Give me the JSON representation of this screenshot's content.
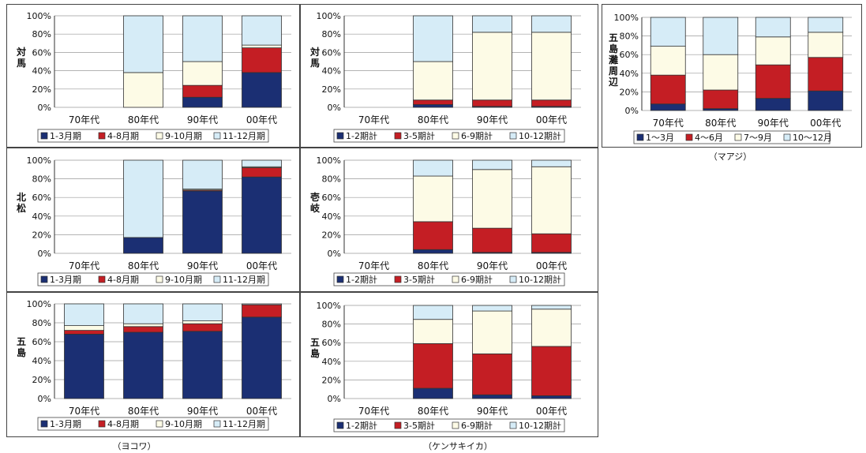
{
  "colors": {
    "c1": "#1b2f73",
    "c2": "#c41e24",
    "c3": "#fdfbe6",
    "c4": "#d6ecf7"
  },
  "legend_sets": {
    "yokowa": [
      "1-3月期",
      "4-8月期",
      "9-10月期",
      "11-12月期"
    ],
    "kensaki": [
      "1-2期計",
      "3-5期計",
      "6-9期計",
      "10-12期計"
    ],
    "maaji": [
      "1～3月",
      "4～6月",
      "7～9月",
      "10～12月"
    ]
  },
  "captions": {
    "maaji": "（マアジ）",
    "yokowa": "（ヨコワ）",
    "kensaki": "（ケンサキイカ）"
  },
  "chart_data": [
    {
      "id": "p1",
      "type": "bar",
      "stacked": true,
      "region": "対馬",
      "legend": "yokowa",
      "categories": [
        "70年代",
        "80年代",
        "90年代",
        "00年代"
      ],
      "ylim": [
        0,
        100
      ],
      "yticks": [
        "0%",
        "20%",
        "40%",
        "60%",
        "80%",
        "100%"
      ],
      "series": [
        {
          "name": "1-3月期",
          "values": [
            0,
            0,
            11,
            38
          ]
        },
        {
          "name": "4-8月期",
          "values": [
            0,
            0,
            13,
            27
          ]
        },
        {
          "name": "9-10月期",
          "values": [
            0,
            38,
            26,
            3
          ]
        },
        {
          "name": "11-12月期",
          "values": [
            0,
            62,
            50,
            32
          ]
        }
      ]
    },
    {
      "id": "p2",
      "type": "bar",
      "stacked": true,
      "region": "対馬",
      "legend": "kensaki",
      "categories": [
        "70年代",
        "80年代",
        "90年代",
        "00年代"
      ],
      "ylim": [
        0,
        100
      ],
      "yticks": [
        "0%",
        "20%",
        "40%",
        "60%",
        "80%",
        "100%"
      ],
      "series": [
        {
          "name": "1-2期計",
          "values": [
            0,
            3,
            1,
            1
          ]
        },
        {
          "name": "3-5期計",
          "values": [
            0,
            5,
            7,
            7
          ]
        },
        {
          "name": "6-9期計",
          "values": [
            0,
            42,
            74,
            74
          ]
        },
        {
          "name": "10-12期計",
          "values": [
            0,
            50,
            18,
            18
          ]
        }
      ]
    },
    {
      "id": "p3",
      "type": "bar",
      "stacked": true,
      "region": "五島灘周辺",
      "legend": "maaji",
      "categories": [
        "70年代",
        "80年代",
        "90年代",
        "00年代"
      ],
      "ylim": [
        0,
        100
      ],
      "yticks": [
        "0%",
        "20%",
        "40%",
        "60%",
        "80%",
        "100%"
      ],
      "series": [
        {
          "name": "1～3月",
          "values": [
            7,
            2,
            13,
            21
          ]
        },
        {
          "name": "4～6月",
          "values": [
            31,
            20,
            36,
            36
          ]
        },
        {
          "name": "7～9月",
          "values": [
            31,
            38,
            30,
            27
          ]
        },
        {
          "name": "10～12月",
          "values": [
            31,
            40,
            21,
            16
          ]
        }
      ]
    },
    {
      "id": "p4",
      "type": "bar",
      "stacked": true,
      "region": "北松",
      "legend": "yokowa",
      "categories": [
        "70年代",
        "80年代",
        "90年代",
        "00年代"
      ],
      "ylim": [
        0,
        100
      ],
      "yticks": [
        "0%",
        "20%",
        "40%",
        "60%",
        "80%",
        "100%"
      ],
      "series": [
        {
          "name": "1-3月期",
          "values": [
            0,
            17,
            67,
            82
          ]
        },
        {
          "name": "4-8月期",
          "values": [
            0,
            0,
            1,
            10
          ]
        },
        {
          "name": "9-10月期",
          "values": [
            0,
            0,
            1,
            1
          ]
        },
        {
          "name": "11-12月期",
          "values": [
            0,
            83,
            31,
            7
          ]
        }
      ]
    },
    {
      "id": "p5",
      "type": "bar",
      "stacked": true,
      "region": "壱岐",
      "legend": "kensaki",
      "categories": [
        "70年代",
        "80年代",
        "90年代",
        "00年代"
      ],
      "ylim": [
        0,
        100
      ],
      "yticks": [
        "0%",
        "20%",
        "40%",
        "60%",
        "80%",
        "100%"
      ],
      "series": [
        {
          "name": "1-2期計",
          "values": [
            0,
            4,
            1,
            1
          ]
        },
        {
          "name": "3-5期計",
          "values": [
            0,
            30,
            26,
            20
          ]
        },
        {
          "name": "6-9期計",
          "values": [
            0,
            49,
            63,
            72
          ]
        },
        {
          "name": "10-12期計",
          "values": [
            0,
            17,
            10,
            7
          ]
        }
      ]
    },
    {
      "id": "p6",
      "type": "bar",
      "stacked": true,
      "region": "五島",
      "legend": "yokowa",
      "categories": [
        "70年代",
        "80年代",
        "90年代",
        "00年代"
      ],
      "ylim": [
        0,
        100
      ],
      "yticks": [
        "0%",
        "20%",
        "40%",
        "60%",
        "80%",
        "100%"
      ],
      "series": [
        {
          "name": "1-3月期",
          "values": [
            68,
            70,
            71,
            86
          ]
        },
        {
          "name": "4-8月期",
          "values": [
            4,
            6,
            8,
            13
          ]
        },
        {
          "name": "9-10月期",
          "values": [
            5,
            3,
            3,
            0
          ]
        },
        {
          "name": "11-12月期",
          "values": [
            23,
            21,
            18,
            1
          ]
        }
      ]
    },
    {
      "id": "p7",
      "type": "bar",
      "stacked": true,
      "region": "五島",
      "legend": "kensaki",
      "categories": [
        "70年代",
        "80年代",
        "90年代",
        "00年代"
      ],
      "ylim": [
        0,
        100
      ],
      "yticks": [
        "0%",
        "20%",
        "40%",
        "60%",
        "80%",
        "100%"
      ],
      "series": [
        {
          "name": "1-2期計",
          "values": [
            0,
            11,
            4,
            3
          ]
        },
        {
          "name": "3-5期計",
          "values": [
            0,
            48,
            44,
            53
          ]
        },
        {
          "name": "6-9期計",
          "values": [
            0,
            26,
            46,
            40
          ]
        },
        {
          "name": "10-12期計",
          "values": [
            0,
            15,
            6,
            4
          ]
        }
      ]
    }
  ]
}
